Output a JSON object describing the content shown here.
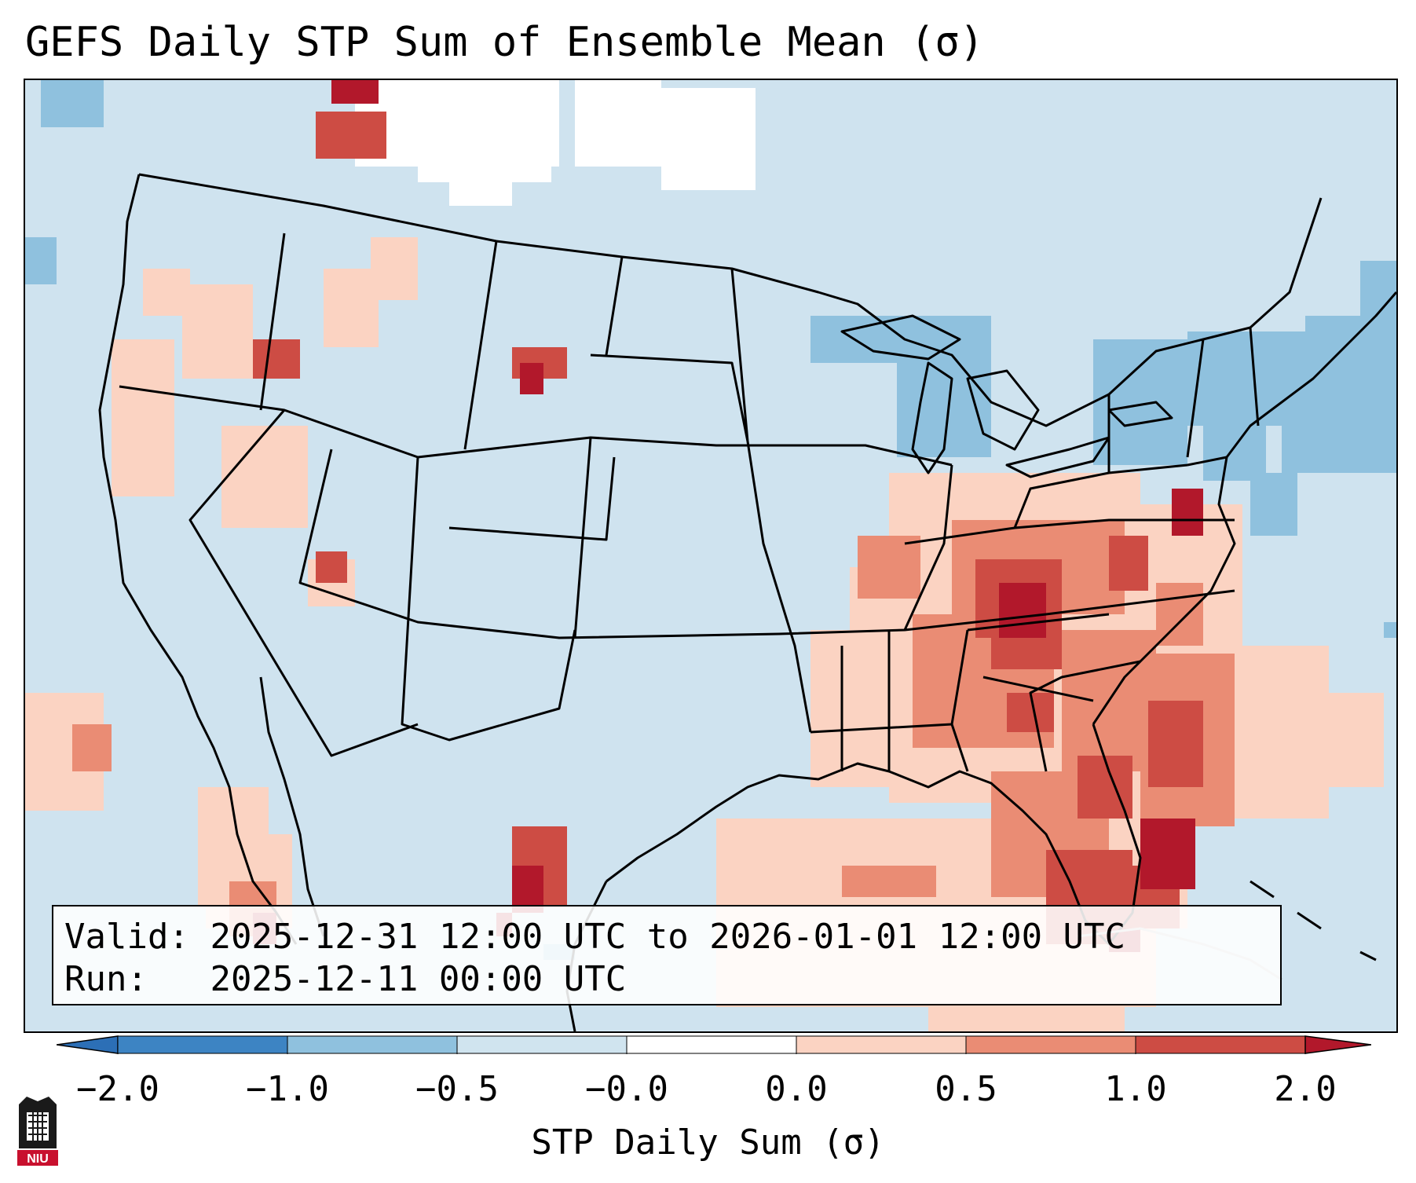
{
  "title": "GEFS Daily STP Sum of Ensemble Mean (σ)",
  "map": {
    "region": "Contiguous United States with southern Canada, northern Mexico, Gulf of Mexico and western Atlantic",
    "background_color": "#cfe3ef",
    "no_data_color": "#ffffff",
    "border_color": "#000000"
  },
  "info_box": {
    "valid_label": "Valid:",
    "valid_value": "2025-12-31 12:00 UTC to 2026-01-01 12:00 UTC",
    "run_label": "Run:",
    "run_value": "2025-12-11 00:00 UTC"
  },
  "colorbar": {
    "label": "STP Daily Sum (σ)",
    "ticks": [
      "−2.0",
      "−1.0",
      "−0.5",
      "−0.0",
      "0.0",
      "0.5",
      "1.0",
      "2.0"
    ],
    "segment_colors": [
      "#3d84c3",
      "#8fc1de",
      "#d0e4ef",
      "#ffffff",
      "#fbd3c2",
      "#ea8c74",
      "#cd4c44"
    ],
    "under_color": "#2c6fb6",
    "over_color": "#b2182b"
  },
  "logo": {
    "text": "NIU",
    "color": "#c8102e"
  }
}
